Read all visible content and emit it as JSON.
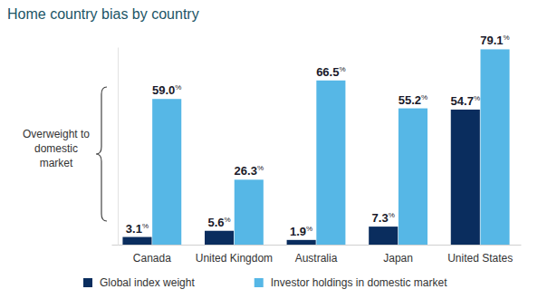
{
  "chart_data": {
    "type": "bar",
    "title": "Home country bias by country",
    "annotation": [
      "Overweight to",
      "domestic",
      "market"
    ],
    "categories": [
      "Canada",
      "United Kingdom",
      "Australia",
      "Japan",
      "United States"
    ],
    "series": [
      {
        "name": "Global index weight",
        "color": "#0a2d5e",
        "values": [
          3.1,
          5.6,
          1.9,
          7.3,
          54.7
        ],
        "value_labels": [
          "3.1%",
          "5.6%",
          "1.9%",
          "7.3%",
          "54.7%"
        ]
      },
      {
        "name": "Investor holdings in domestic market",
        "color": "#56b7e6",
        "values": [
          59.0,
          26.3,
          66.5,
          55.2,
          79.1
        ],
        "value_labels": [
          "59.0%",
          "26.3%",
          "66.5%",
          "55.2%",
          "79.1%"
        ]
      }
    ],
    "ylim": [
      0,
      80
    ],
    "data_labels": true,
    "tick_labels": "x",
    "grid": false,
    "legend": "bottom"
  }
}
